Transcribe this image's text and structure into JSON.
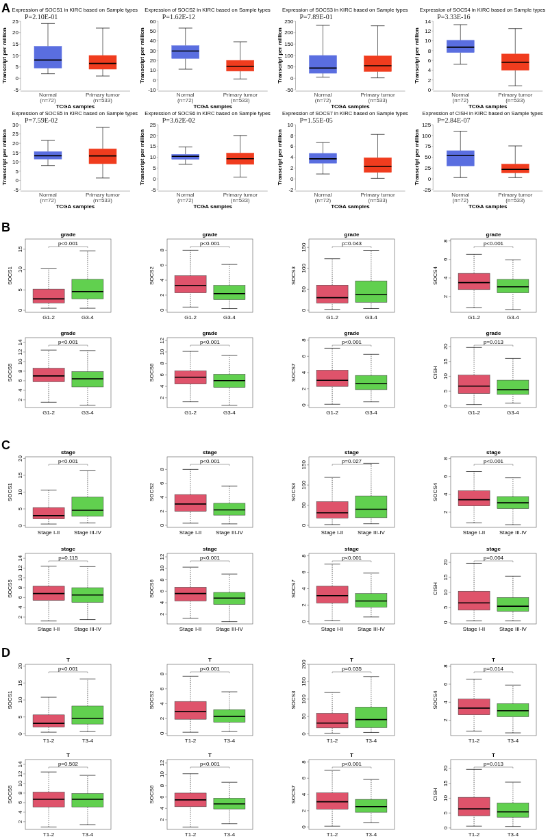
{
  "chart_data": [
    {
      "type": "box",
      "title": "Expression of SOCS1 in KIRC based on Sample types",
      "xlabel": "TCGA samples",
      "ylabel": "Transcript per million",
      "categories": [
        "Normal\n(n=72)",
        "Primary tumor\n(n=533)"
      ],
      "colors": [
        "#5a6ee0",
        "#f03c1e"
      ],
      "boxes": [
        {
          "low": 2,
          "q1": 4.5,
          "median": 8,
          "q3": 14,
          "high": 24
        },
        {
          "low": 1,
          "q1": 4,
          "median": 6.5,
          "q3": 10,
          "high": 22
        }
      ],
      "ylim": [
        -5,
        25
      ],
      "yticks": [
        -5,
        0,
        5,
        10,
        15,
        20,
        25
      ],
      "annotations": [
        "A",
        "P=2.10E-01"
      ]
    },
    {
      "type": "box",
      "title": "Expression of SOCS2 in KIRC based on Sample types",
      "xlabel": "TCGA samples",
      "ylabel": "Transcript per million",
      "categories": [
        "Normal\n(n=72)",
        "Primary tumor\n(n=533)"
      ],
      "colors": [
        "#5a6ee0",
        "#f03c1e"
      ],
      "boxes": [
        {
          "low": 11,
          "q1": 22,
          "median": 29.5,
          "q3": 35,
          "high": 53
        },
        {
          "low": 1,
          "q1": 9,
          "median": 14,
          "q3": 20,
          "high": 39
        }
      ],
      "ylim": [
        -10,
        60
      ],
      "yticks": [
        -10,
        0,
        10,
        20,
        30,
        40,
        50,
        60
      ],
      "annotations": [
        "P=1.62E-12"
      ]
    },
    {
      "type": "box",
      "title": "Expression of SOCS3 in KIRC based on Sample types",
      "xlabel": "TCGA samples",
      "ylabel": "Transcript per million",
      "categories": [
        "Normal\n(n=72)",
        "Primary tumor\n(n=533)"
      ],
      "colors": [
        "#5a6ee0",
        "#f03c1e"
      ],
      "boxes": [
        {
          "low": 5,
          "q1": 22,
          "median": 45,
          "q3": 100,
          "high": 232
        },
        {
          "low": 2,
          "q1": 30,
          "median": 55,
          "q3": 98,
          "high": 230
        }
      ],
      "ylim": [
        -50,
        250
      ],
      "yticks": [
        -50,
        0,
        50,
        100,
        150,
        200,
        250
      ],
      "annotations": [
        "P=7.89E-01"
      ]
    },
    {
      "type": "box",
      "title": "Expression of SOCS4 in KIRC based on Sample types",
      "xlabel": "TCGA samples",
      "ylabel": "Transcript per million",
      "categories": [
        "Normal\n(n=72)",
        "Primary tumor\n(n=533)"
      ],
      "colors": [
        "#5a6ee0",
        "#f03c1e"
      ],
      "boxes": [
        {
          "low": 5.2,
          "q1": 7.6,
          "median": 8.7,
          "q3": 10.1,
          "high": 13.3
        },
        {
          "low": 0.8,
          "q1": 4,
          "median": 5.6,
          "q3": 7.3,
          "high": 12.5
        }
      ],
      "ylim": [
        0,
        14
      ],
      "yticks": [
        0,
        2,
        4,
        6,
        8,
        10,
        12,
        14
      ],
      "annotations": [
        "P=3.33E-16"
      ]
    },
    {
      "type": "box",
      "title": "Expression of SOCS5 in KIRC based on Sample types",
      "xlabel": "TCGA samples",
      "ylabel": "Transcript per million",
      "categories": [
        "Normal\n(n=72)",
        "Primary tumor\n(n=533)"
      ],
      "colors": [
        "#5a6ee0",
        "#f03c1e"
      ],
      "boxes": [
        {
          "low": 8,
          "q1": 11.5,
          "median": 13.3,
          "q3": 15.5,
          "high": 21.5
        },
        {
          "low": 1.3,
          "q1": 9,
          "median": 13.2,
          "q3": 17,
          "high": 28.5
        }
      ],
      "ylim": [
        -5,
        30
      ],
      "yticks": [
        -5,
        0,
        5,
        10,
        15,
        20,
        25,
        30
      ],
      "annotations": [
        "P=7.59E-02"
      ]
    },
    {
      "type": "box",
      "title": "Expression of SOCS6 in KIRC based on Sample types",
      "xlabel": "TCGA samples",
      "ylabel": "Transcript per million",
      "categories": [
        "Normal\n(n=72)",
        "Primary tumor\n(n=533)"
      ],
      "colors": [
        "#5a6ee0",
        "#f03c1e"
      ],
      "boxes": [
        {
          "low": 6.7,
          "q1": 9,
          "median": 10.4,
          "q3": 11.3,
          "high": 14.7
        },
        {
          "low": 0.8,
          "q1": 6.7,
          "median": 9.3,
          "q3": 11.9,
          "high": 20
        }
      ],
      "ylim": [
        -5,
        25
      ],
      "yticks": [
        -5,
        0,
        5,
        10,
        15,
        20,
        25
      ],
      "annotations": [
        "P=3.62E-02"
      ]
    },
    {
      "type": "box",
      "title": "Expression of SOCS7 in KIRC based on Sample types",
      "xlabel": "TCGA samples",
      "ylabel": "Transcript per million",
      "categories": [
        "Normal\n(n=72)",
        "Primary tumor\n(n=533)"
      ],
      "colors": [
        "#5a6ee0",
        "#f03c1e"
      ],
      "boxes": [
        {
          "low": 0.9,
          "q1": 2.9,
          "median": 3.7,
          "q3": 4.7,
          "high": 6.7
        },
        {
          "low": 0.1,
          "q1": 1.2,
          "median": 2.3,
          "q3": 3.9,
          "high": 8.2
        }
      ],
      "ylim": [
        -2,
        10
      ],
      "yticks": [
        -2,
        0,
        2,
        4,
        6,
        8,
        10
      ],
      "annotations": [
        "P=1.55E-05"
      ]
    },
    {
      "type": "box",
      "title": "Expression of CISH in KIRC based on Sample types",
      "xlabel": "TCGA samples",
      "ylabel": "Transcript per million",
      "categories": [
        "Normal\n(n=72)",
        "Primary tumor\n(n=533)"
      ],
      "colors": [
        "#5a6ee0",
        "#f03c1e"
      ],
      "boxes": [
        {
          "low": 3,
          "q1": 30,
          "median": 54,
          "q3": 65,
          "high": 110
        },
        {
          "low": 3,
          "q1": 14,
          "median": 22,
          "q3": 34,
          "high": 76
        }
      ],
      "ylim": [
        -25,
        125
      ],
      "yticks": [
        -25,
        0,
        25,
        50,
        75,
        100,
        125
      ],
      "annotations": [
        "P=2.84E-07"
      ]
    },
    {
      "type": "box",
      "title": "grade",
      "ylabel": "SOCS1",
      "categories": [
        "G1-2",
        "G3-4"
      ],
      "colors": [
        "#df536b",
        "#61d04f"
      ],
      "boxes": [
        {
          "low": 0.5,
          "q1": 1.8,
          "median": 2.8,
          "q3": 5.2,
          "high": 10.2
        },
        {
          "low": 0.5,
          "q1": 2.8,
          "median": 4.6,
          "q3": 7.6,
          "high": 14.6
        }
      ],
      "ylim": [
        -0.5,
        17.5
      ],
      "yticks": [
        0,
        5,
        10,
        15
      ],
      "annotations": [
        "B",
        "p<0.001"
      ]
    },
    {
      "type": "box",
      "title": "grade",
      "ylabel": "SOCS2",
      "categories": [
        "G1-2",
        "G3-4"
      ],
      "colors": [
        "#df536b",
        "#61d04f"
      ],
      "boxes": [
        {
          "low": 0.4,
          "q1": 2.3,
          "median": 3.3,
          "q3": 4.6,
          "high": 8
        },
        {
          "low": 0.2,
          "q1": 1.4,
          "median": 2.2,
          "q3": 3.3,
          "high": 6.1
        }
      ],
      "ylim": [
        -0.3,
        9.5
      ],
      "yticks": [
        0,
        2,
        4,
        6,
        8
      ],
      "annotations": [
        "p<0.001"
      ]
    },
    {
      "type": "box",
      "title": "grade",
      "ylabel": "SOCS3",
      "categories": [
        "G1-2",
        "G3-4"
      ],
      "colors": [
        "#df536b",
        "#61d04f"
      ],
      "boxes": [
        {
          "low": 2,
          "q1": 17,
          "median": 30,
          "q3": 60,
          "high": 123
        },
        {
          "low": 4,
          "q1": 19,
          "median": 37,
          "q3": 70,
          "high": 143
        }
      ],
      "ylim": [
        -5,
        170
      ],
      "yticks": [
        0,
        50,
        100,
        150
      ],
      "annotations": [
        "p=0.043"
      ]
    },
    {
      "type": "box",
      "title": "grade",
      "ylabel": "SOCS4",
      "categories": [
        "G1-2",
        "G3-4"
      ],
      "colors": [
        "#df536b",
        "#61d04f"
      ],
      "boxes": [
        {
          "low": 0.8,
          "q1": 2.75,
          "median": 3.5,
          "q3": 4.5,
          "high": 6.55
        },
        {
          "low": 0.6,
          "q1": 2.4,
          "median": 3.05,
          "q3": 3.85,
          "high": 5.95
        }
      ],
      "ylim": [
        0.3,
        8.2
      ],
      "yticks": [
        2,
        4,
        6,
        8
      ],
      "annotations": [
        "p<0.001"
      ]
    },
    {
      "type": "box",
      "title": "grade",
      "ylabel": "SOCS5",
      "categories": [
        "G1-2",
        "G3-4"
      ],
      "colors": [
        "#df536b",
        "#61d04f"
      ],
      "boxes": [
        {
          "low": 1.5,
          "q1": 5.8,
          "median": 7,
          "q3": 8.6,
          "high": 12.4
        },
        {
          "low": 0.9,
          "q1": 4.7,
          "median": 6.4,
          "q3": 7.9,
          "high": 12.3
        }
      ],
      "ylim": [
        0.4,
        15
      ],
      "yticks": [
        2,
        4,
        6,
        8,
        10,
        12,
        14
      ],
      "annotations": [
        "p<0.001"
      ]
    },
    {
      "type": "box",
      "title": "grade",
      "ylabel": "SOCS6",
      "categories": [
        "G1-2",
        "G3-4"
      ],
      "colors": [
        "#df536b",
        "#61d04f"
      ],
      "boxes": [
        {
          "low": 1.3,
          "q1": 4.4,
          "median": 5.6,
          "q3": 6.7,
          "high": 10.1
        },
        {
          "low": 0.7,
          "q1": 3.8,
          "median": 5,
          "q3": 6.1,
          "high": 9.4
        }
      ],
      "ylim": [
        0.3,
        12.5
      ],
      "yticks": [
        2,
        4,
        6,
        8,
        10,
        12
      ],
      "annotations": [
        "p<0.001"
      ]
    },
    {
      "type": "box",
      "title": "grade",
      "ylabel": "SOCS7",
      "categories": [
        "G1-2",
        "G3-4"
      ],
      "colors": [
        "#df536b",
        "#61d04f"
      ],
      "boxes": [
        {
          "low": 0.1,
          "q1": 2.3,
          "median": 3.05,
          "q3": 4.3,
          "high": 7
        },
        {
          "low": 0.4,
          "q1": 1.9,
          "median": 2.65,
          "q3": 3.65,
          "high": 6.25
        }
      ],
      "ylim": [
        -0.3,
        8.3
      ],
      "yticks": [
        0,
        2,
        4,
        6,
        8
      ],
      "annotations": [
        "p<0.001"
      ]
    },
    {
      "type": "box",
      "title": "grade",
      "ylabel": "CISH",
      "categories": [
        "G1-2",
        "G3-4"
      ],
      "colors": [
        "#df536b",
        "#61d04f"
      ],
      "boxes": [
        {
          "low": 0.5,
          "q1": 4.2,
          "median": 6.7,
          "q3": 10.4,
          "high": 19.7
        },
        {
          "low": 1,
          "q1": 3.9,
          "median": 5.5,
          "q3": 8.7,
          "high": 16
        }
      ],
      "ylim": [
        -0.5,
        23
      ],
      "yticks": [
        0,
        5,
        10,
        15,
        20
      ],
      "annotations": [
        "p=0.013"
      ]
    },
    {
      "type": "box",
      "title": "stage",
      "ylabel": "SOCS1",
      "categories": [
        "Stage I-II",
        "Stage III-IV"
      ],
      "colors": [
        "#df536b",
        "#61d04f"
      ],
      "boxes": [
        {
          "low": 0.5,
          "q1": 2,
          "median": 3,
          "q3": 5.4,
          "high": 10.6
        },
        {
          "low": 0.8,
          "q1": 2.8,
          "median": 4.6,
          "q3": 8.5,
          "high": 16.5
        }
      ],
      "ylim": [
        -0.5,
        20.5
      ],
      "yticks": [
        0,
        5,
        10,
        15,
        20
      ],
      "annotations": [
        "C",
        "p<0.001"
      ]
    },
    {
      "type": "box",
      "title": "stage",
      "ylabel": "SOCS2",
      "categories": [
        "Stage I-II",
        "Stage III-IV"
      ],
      "colors": [
        "#df536b",
        "#61d04f"
      ],
      "boxes": [
        {
          "low": 0.3,
          "q1": 2,
          "median": 3.05,
          "q3": 4.4,
          "high": 8
        },
        {
          "low": 0.2,
          "q1": 1.45,
          "median": 2.2,
          "q3": 3.15,
          "high": 5.6
        }
      ],
      "ylim": [
        -0.3,
        9.8
      ],
      "yticks": [
        0,
        2,
        4,
        6,
        8
      ],
      "annotations": [
        "p<0.001"
      ]
    },
    {
      "type": "box",
      "title": "stage",
      "ylabel": "SOCS3",
      "categories": [
        "Stage I-II",
        "Stage III-IV"
      ],
      "colors": [
        "#df536b",
        "#61d04f"
      ],
      "boxes": [
        {
          "low": 2,
          "q1": 18,
          "median": 31,
          "q3": 59,
          "high": 119
        },
        {
          "low": 4,
          "q1": 19,
          "median": 40,
          "q3": 73,
          "high": 154
        }
      ],
      "ylim": [
        -5,
        170
      ],
      "yticks": [
        0,
        50,
        100,
        150
      ],
      "annotations": [
        "p=0.027"
      ]
    },
    {
      "type": "box",
      "title": "stage",
      "ylabel": "SOCS4",
      "categories": [
        "Stage I-II",
        "Stage III-IV"
      ],
      "colors": [
        "#df536b",
        "#61d04f"
      ],
      "boxes": [
        {
          "low": 0.8,
          "q1": 2.7,
          "median": 3.4,
          "q3": 4.4,
          "high": 6.55
        },
        {
          "low": 0.6,
          "q1": 2.4,
          "median": 3.05,
          "q3": 3.75,
          "high": 5.85
        }
      ],
      "ylim": [
        0.3,
        8.2
      ],
      "yticks": [
        2,
        4,
        6,
        8
      ],
      "annotations": [
        "p<0.001"
      ]
    },
    {
      "type": "box",
      "title": "stage",
      "ylabel": "SOCS5",
      "categories": [
        "Stage I-II",
        "Stage III-IV"
      ],
      "colors": [
        "#df536b",
        "#61d04f"
      ],
      "boxes": [
        {
          "low": 1.2,
          "q1": 5.4,
          "median": 6.8,
          "q3": 8.3,
          "high": 12.4
        },
        {
          "low": 1.5,
          "q1": 5,
          "median": 6.5,
          "q3": 8,
          "high": 12.3
        }
      ],
      "ylim": [
        0.6,
        15
      ],
      "yticks": [
        2,
        4,
        6,
        8,
        10,
        12,
        14
      ],
      "annotations": [
        "p=0.115"
      ]
    },
    {
      "type": "box",
      "title": "stage",
      "ylabel": "SOCS6",
      "categories": [
        "Stage I-II",
        "Stage III-IV"
      ],
      "colors": [
        "#df536b",
        "#61d04f"
      ],
      "boxes": [
        {
          "low": 1.3,
          "q1": 4.3,
          "median": 5.6,
          "q3": 6.7,
          "high": 10.2
        },
        {
          "low": 0.7,
          "q1": 3.7,
          "median": 4.8,
          "q3": 5.8,
          "high": 9
        }
      ],
      "ylim": [
        0.3,
        12.6
      ],
      "yticks": [
        2,
        4,
        6,
        8,
        10,
        12
      ],
      "annotations": [
        "p<0.001"
      ]
    },
    {
      "type": "box",
      "title": "stage",
      "ylabel": "SOCS7",
      "categories": [
        "Stage I-II",
        "Stage III-IV"
      ],
      "colors": [
        "#df536b",
        "#61d04f"
      ],
      "boxes": [
        {
          "low": 0.1,
          "q1": 2.25,
          "median": 3.15,
          "q3": 4.3,
          "high": 7
        },
        {
          "low": 0.55,
          "q1": 1.75,
          "median": 2.5,
          "q3": 3.4,
          "high": 5.9
        }
      ],
      "ylim": [
        -0.3,
        8.3
      ],
      "yticks": [
        0,
        2,
        4,
        6,
        8
      ],
      "annotations": [
        "p<0.001"
      ]
    },
    {
      "type": "box",
      "title": "stage",
      "ylabel": "CISH",
      "categories": [
        "Stage I-II",
        "Stage III-IV"
      ],
      "colors": [
        "#df536b",
        "#61d04f"
      ],
      "boxes": [
        {
          "low": 0.5,
          "q1": 4.1,
          "median": 6.5,
          "q3": 10.4,
          "high": 19.7
        },
        {
          "low": 0.5,
          "q1": 3.7,
          "median": 5.4,
          "q3": 8.3,
          "high": 15.4
        }
      ],
      "ylim": [
        -0.5,
        23
      ],
      "yticks": [
        0,
        5,
        10,
        15,
        20
      ],
      "annotations": [
        "p=0.004"
      ]
    },
    {
      "type": "box",
      "title": "T",
      "ylabel": "SOCS1",
      "categories": [
        "T1-2",
        "T3-4"
      ],
      "colors": [
        "#df536b",
        "#61d04f"
      ],
      "boxes": [
        {
          "low": 0.5,
          "q1": 2,
          "median": 3.1,
          "q3": 5.6,
          "high": 10.8
        },
        {
          "low": 0.7,
          "q1": 2.9,
          "median": 4.6,
          "q3": 8.2,
          "high": 16.2
        }
      ],
      "ylim": [
        -0.5,
        20.5
      ],
      "yticks": [
        0,
        5,
        10,
        15,
        20
      ],
      "annotations": [
        "D",
        "p<0.001"
      ]
    },
    {
      "type": "box",
      "title": "T",
      "ylabel": "SOCS2",
      "categories": [
        "T1-2",
        "T3-4"
      ],
      "colors": [
        "#df536b",
        "#61d04f"
      ],
      "boxes": [
        {
          "low": 0.15,
          "q1": 1.9,
          "median": 2.95,
          "q3": 4.3,
          "high": 7.7
        },
        {
          "low": 0.25,
          "q1": 1.5,
          "median": 2.3,
          "q3": 3.2,
          "high": 5.6
        }
      ],
      "ylim": [
        -0.3,
        9.3
      ],
      "yticks": [
        0,
        2,
        4,
        6,
        8
      ],
      "annotations": [
        "p<0.001"
      ]
    },
    {
      "type": "box",
      "title": "T",
      "ylabel": "SOCS3",
      "categories": [
        "T1-2",
        "T3-4"
      ],
      "colors": [
        "#df536b",
        "#61d04f"
      ],
      "boxes": [
        {
          "low": 2,
          "q1": 17,
          "median": 31,
          "q3": 59,
          "high": 119
        },
        {
          "low": 4,
          "q1": 18,
          "median": 41,
          "q3": 77,
          "high": 165
        }
      ],
      "ylim": [
        -5,
        200
      ],
      "yticks": [
        0,
        50,
        100,
        150,
        200
      ],
      "annotations": [
        "p=0.035"
      ]
    },
    {
      "type": "box",
      "title": "T",
      "ylabel": "SOCS4",
      "categories": [
        "T1-2",
        "T3-4"
      ],
      "colors": [
        "#df536b",
        "#61d04f"
      ],
      "boxes": [
        {
          "low": 0.8,
          "q1": 2.6,
          "median": 3.35,
          "q3": 4.35,
          "high": 6.55
        },
        {
          "low": 0.6,
          "q1": 2.4,
          "median": 3.05,
          "q3": 3.85,
          "high": 5.9
        }
      ],
      "ylim": [
        0.3,
        8.2
      ],
      "yticks": [
        2,
        4,
        6,
        8
      ],
      "annotations": [
        "p=0.014"
      ]
    },
    {
      "type": "box",
      "title": "T",
      "ylabel": "SOCS5",
      "categories": [
        "T1-2",
        "T3-4"
      ],
      "colors": [
        "#df536b",
        "#61d04f"
      ],
      "boxes": [
        {
          "low": 0.9,
          "q1": 5.1,
          "median": 6.7,
          "q3": 8.2,
          "high": 12.4
        },
        {
          "low": 1.4,
          "q1": 5.1,
          "median": 6.7,
          "q3": 7.9,
          "high": 11.7
        }
      ],
      "ylim": [
        0.4,
        15
      ],
      "yticks": [
        2,
        4,
        6,
        8,
        10,
        12,
        14
      ],
      "annotations": [
        "p=0.502"
      ]
    },
    {
      "type": "box",
      "title": "T",
      "ylabel": "SOCS6",
      "categories": [
        "T1-2",
        "T3-4"
      ],
      "colors": [
        "#df536b",
        "#61d04f"
      ],
      "boxes": [
        {
          "low": 0.7,
          "q1": 4.3,
          "median": 5.5,
          "q3": 6.7,
          "high": 10.1
        },
        {
          "low": 1.3,
          "q1": 3.9,
          "median": 4.8,
          "q3": 5.8,
          "high": 8.6
        }
      ],
      "ylim": [
        0.3,
        12.6
      ],
      "yticks": [
        2,
        4,
        6,
        8,
        10,
        12
      ],
      "annotations": [
        "p<0.001"
      ]
    },
    {
      "type": "box",
      "title": "T",
      "ylabel": "SOCS7",
      "categories": [
        "T1-2",
        "T3-4"
      ],
      "colors": [
        "#df536b",
        "#61d04f"
      ],
      "boxes": [
        {
          "low": 0.1,
          "q1": 2.2,
          "median": 3.1,
          "q3": 4.2,
          "high": 7
        },
        {
          "low": 0.55,
          "q1": 1.8,
          "median": 2.5,
          "q3": 3.4,
          "high": 5.85
        }
      ],
      "ylim": [
        -0.3,
        8.3
      ],
      "yticks": [
        0,
        2,
        4,
        6,
        8
      ],
      "annotations": [
        "p<0.001"
      ]
    },
    {
      "type": "box",
      "title": "T",
      "ylabel": "CISH",
      "categories": [
        "T1-2",
        "T3-4"
      ],
      "colors": [
        "#df536b",
        "#61d04f"
      ],
      "boxes": [
        {
          "low": 0.6,
          "q1": 4.1,
          "median": 6.4,
          "q3": 10.3,
          "high": 19.7
        },
        {
          "low": 0.5,
          "q1": 3.6,
          "median": 5.4,
          "q3": 8.4,
          "high": 15.4
        }
      ],
      "ylim": [
        -0.5,
        23
      ],
      "yticks": [
        0,
        5,
        10,
        15,
        20
      ],
      "annotations": [
        "p=0.013"
      ]
    }
  ]
}
